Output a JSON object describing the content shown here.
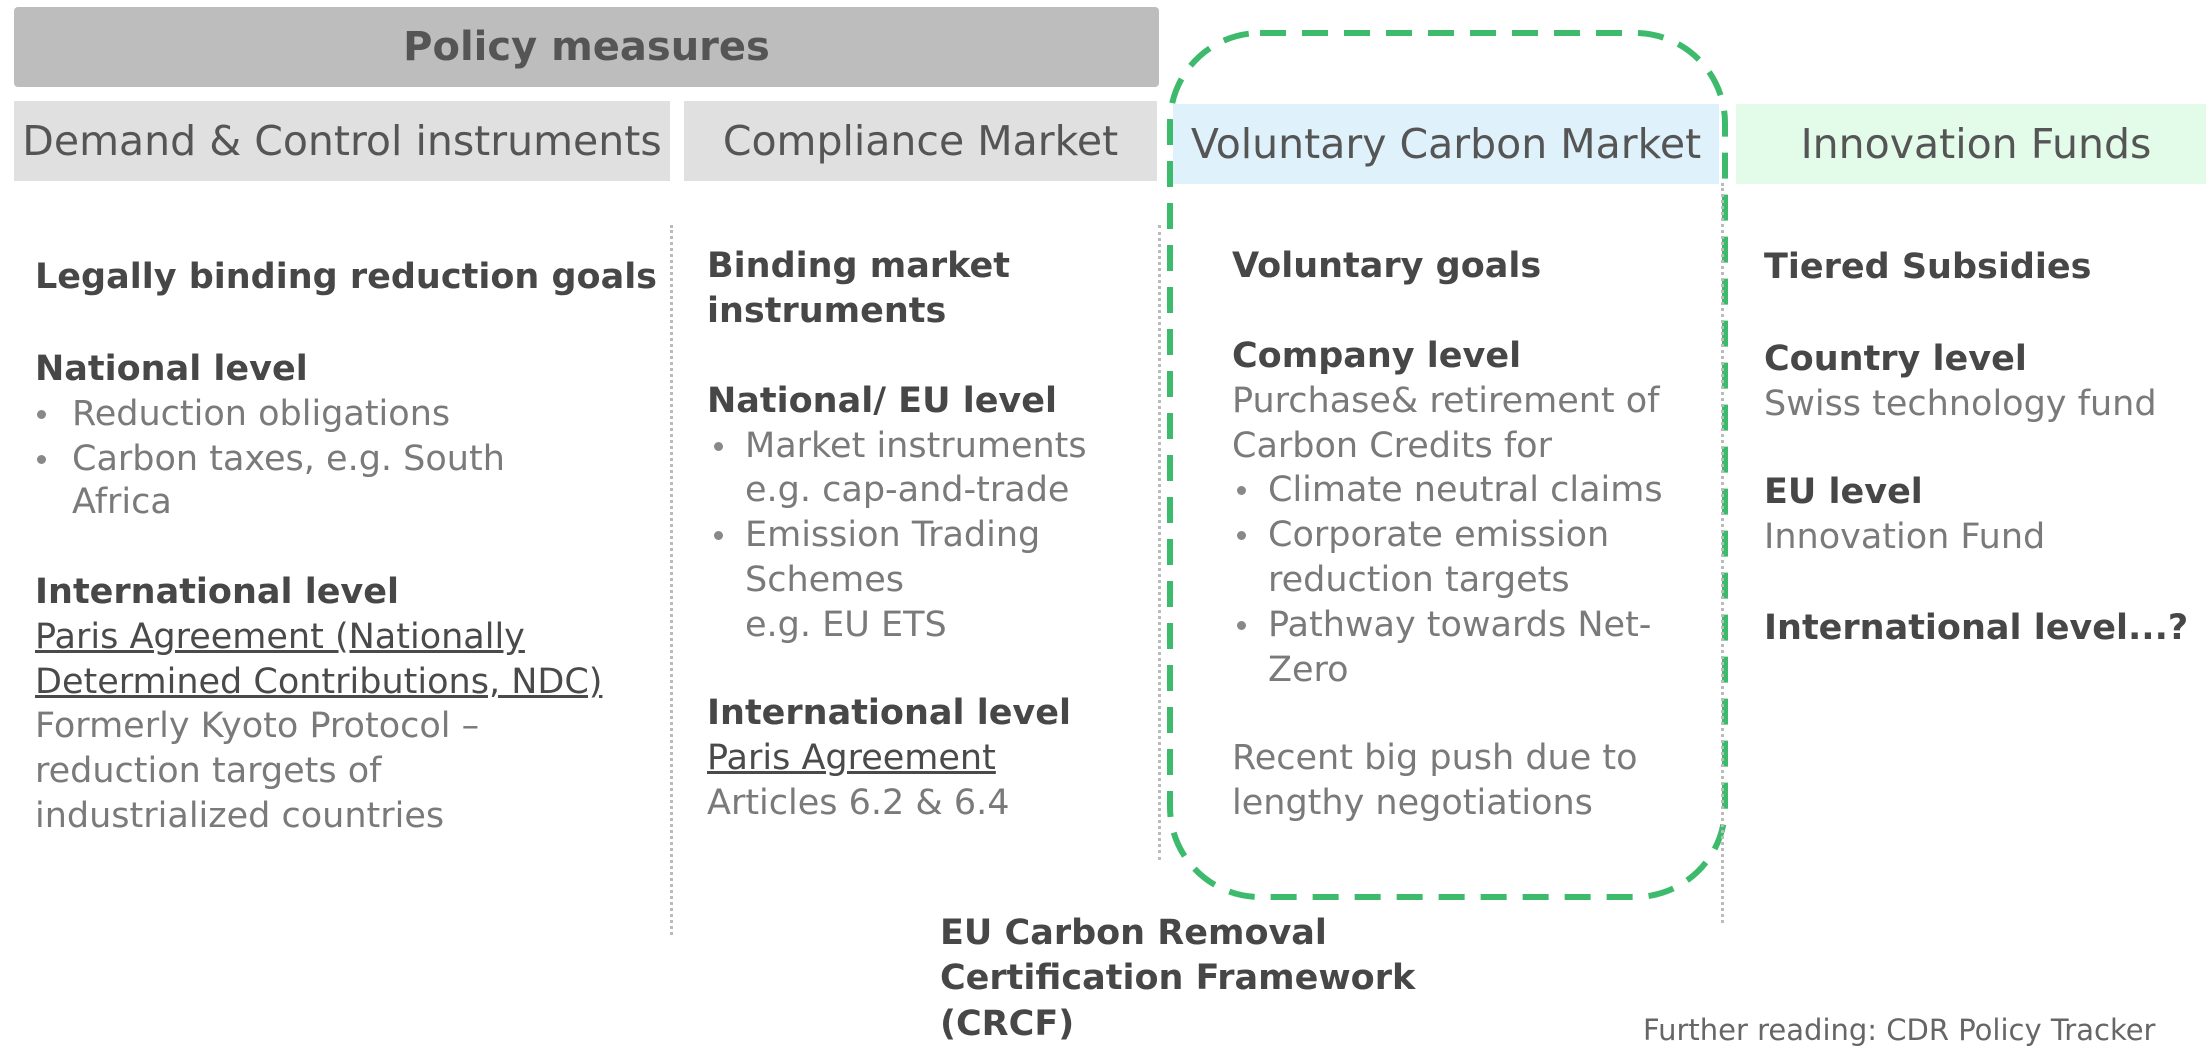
{
  "header": {
    "title": "Policy measures"
  },
  "columns": [
    {
      "header": "Demand & Control instruments",
      "lines": [
        "Legally binding reduction goals",
        "National level",
        "Reduction obligations",
        "Carbon taxes, e.g. South",
        "Africa",
        "International level",
        "Paris Agreement (Nationally",
        "Determined Contributions, NDC)",
        "Formerly Kyoto Protocol –",
        "reduction targets of",
        "industrialized countries"
      ]
    },
    {
      "header": "Compliance Market",
      "lines": [
        "Binding market",
        "instruments",
        "National/ EU level",
        "Market instruments",
        "e.g. cap-and-trade",
        "Emission Trading",
        "Schemes",
        "e.g. EU ETS",
        "International  level",
        "Paris Agreement",
        "Articles 6.2 & 6.4"
      ]
    },
    {
      "header": "Voluntary Carbon Market",
      "lines": [
        "Voluntary goals",
        "Company level",
        "Purchase& retirement of",
        "Carbon Credits for",
        "Climate neutral claims",
        "Corporate emission",
        "reduction targets",
        "Pathway towards Net-",
        "Zero",
        "Recent big push due to",
        "lengthy negotiations"
      ]
    },
    {
      "header": "Innovation Funds",
      "lines": [
        "Tiered Subsidies",
        "Country level",
        "Swiss technology fund",
        "EU level",
        "Innovation Fund",
        "International level...?"
      ]
    }
  ],
  "footer": {
    "crcf": [
      "EU Carbon Removal",
      "Certification Framework",
      "(CRCF)"
    ],
    "further_reading": "Further reading: CDR Policy Tracker"
  }
}
